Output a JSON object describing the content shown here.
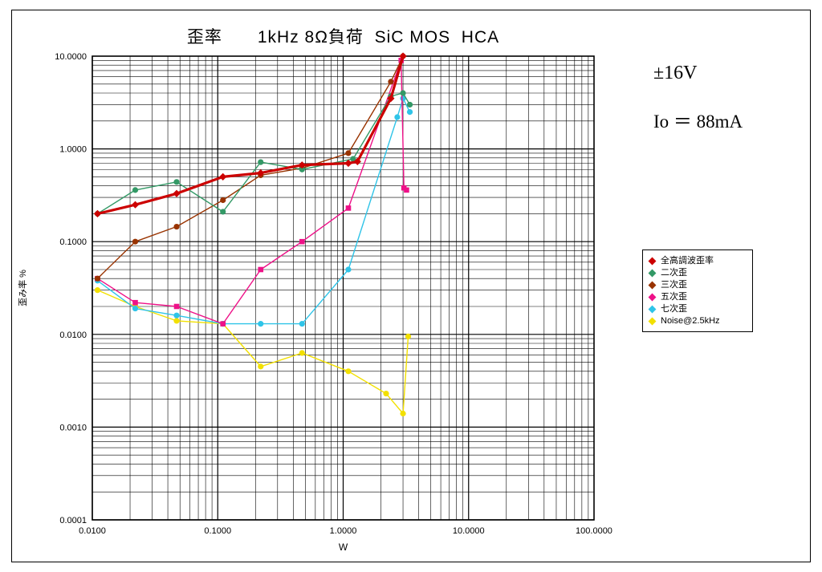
{
  "title": "歪率　　1kHz 8Ω負荷  SiC MOS  HCA",
  "annotations": {
    "voltage": "±16V",
    "current": "Io ＝ 88mA"
  },
  "chart_data": {
    "type": "line",
    "title": "歪率 1kHz 8Ω負荷 SiC MOS HCA",
    "grid": true,
    "legend_position": "right",
    "x_axis": {
      "label": "W",
      "scale": "log",
      "min": 0.01,
      "max": 100,
      "ticks": [
        {
          "value": 0.01,
          "label": "0.0100"
        },
        {
          "value": 0.1,
          "label": "0.1000"
        },
        {
          "value": 1,
          "label": "1.0000"
        },
        {
          "value": 10,
          "label": "10.0000"
        },
        {
          "value": 100,
          "label": "100.0000"
        }
      ]
    },
    "y_axis": {
      "label": "歪み率 %",
      "scale": "log",
      "min": 0.0001,
      "max": 10,
      "ticks": [
        {
          "value": 10,
          "label": "10.0000"
        },
        {
          "value": 1,
          "label": "1.0000"
        },
        {
          "value": 0.1,
          "label": "0.1000"
        },
        {
          "value": 0.01,
          "label": "0.0100"
        },
        {
          "value": 0.001,
          "label": "0.0010"
        },
        {
          "value": 0.0001,
          "label": "0.0001"
        }
      ]
    },
    "series": [
      {
        "name": "全高調波歪率",
        "color": "#cc0000",
        "marker": "diamond",
        "line_width": 3.2,
        "x": [
          0.011,
          0.022,
          0.047,
          0.11,
          0.22,
          0.47,
          1.1,
          1.3,
          2.4,
          3.0
        ],
        "y": [
          0.2,
          0.25,
          0.33,
          0.5,
          0.55,
          0.67,
          0.7,
          0.73,
          3.5,
          10
        ]
      },
      {
        "name": "二次歪",
        "color": "#339966",
        "marker": "circle",
        "line_width": 1.4,
        "x": [
          0.011,
          0.022,
          0.047,
          0.11,
          0.22,
          0.47,
          1.2,
          2.4,
          3.0,
          3.4
        ],
        "y": [
          0.2,
          0.36,
          0.44,
          0.21,
          0.72,
          0.6,
          0.78,
          3.7,
          4.0,
          3.0
        ]
      },
      {
        "name": "三次歪",
        "color": "#993300",
        "marker": "circle",
        "line_width": 1.4,
        "x": [
          0.011,
          0.022,
          0.047,
          0.11,
          0.22,
          0.47,
          1.1,
          2.4,
          3.0
        ],
        "y": [
          0.04,
          0.1,
          0.145,
          0.28,
          0.52,
          0.62,
          0.9,
          5.3,
          10
        ]
      },
      {
        "name": "五次歪",
        "color": "#ee1188",
        "marker": "square",
        "line_width": 1.4,
        "x": [
          0.011,
          0.022,
          0.047,
          0.11,
          0.22,
          0.47,
          1.1,
          2.9,
          3.05,
          3.2
        ],
        "y": [
          0.04,
          0.022,
          0.02,
          0.013,
          0.05,
          0.1,
          0.23,
          9.0,
          0.38,
          0.36
        ]
      },
      {
        "name": "七次歪",
        "color": "#2fc4e8",
        "marker": "circle",
        "line_width": 1.4,
        "x": [
          0.011,
          0.022,
          0.047,
          0.11,
          0.22,
          0.47,
          1.1,
          2.7,
          3.0,
          3.4
        ],
        "y": [
          0.038,
          0.019,
          0.016,
          0.013,
          0.013,
          0.013,
          0.05,
          2.2,
          3.5,
          2.5
        ]
      },
      {
        "name": "Noise@2.5kHz",
        "color": "#f2e000",
        "marker": "circle",
        "line_width": 1.4,
        "x": [
          0.011,
          0.022,
          0.047,
          0.11,
          0.22,
          0.47,
          1.1,
          2.2,
          3.0,
          3.3
        ],
        "y": [
          0.03,
          0.02,
          0.014,
          0.013,
          0.0045,
          0.0063,
          0.004,
          0.0023,
          0.0014,
          0.0095
        ]
      }
    ]
  }
}
